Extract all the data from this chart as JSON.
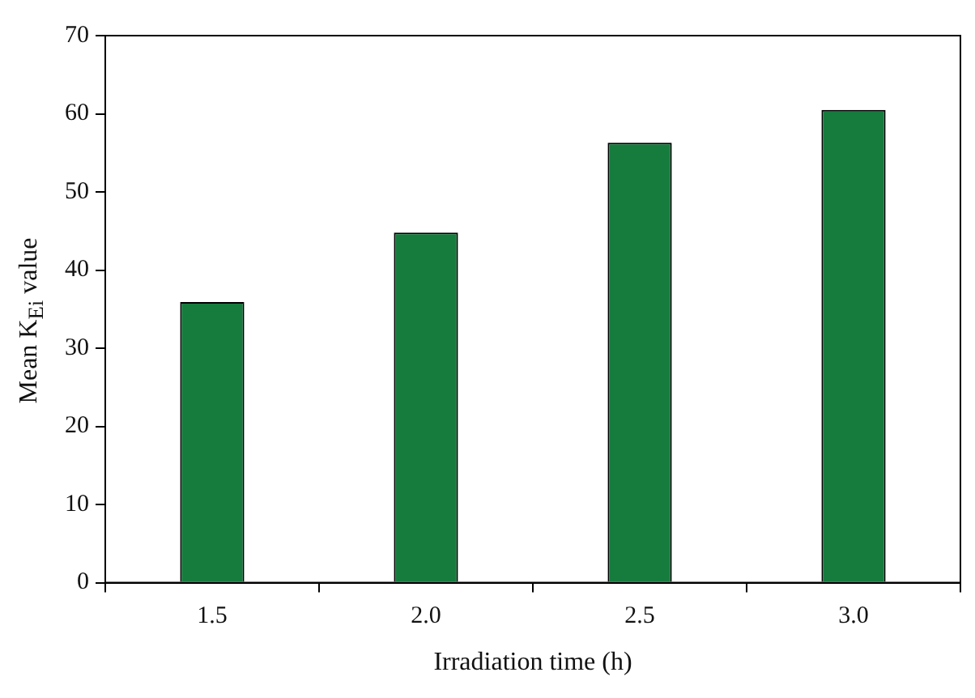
{
  "chart_data": {
    "type": "bar",
    "xlabel": "Irradiation time (h)",
    "ylabel": "Mean K$_{Ei}$ value",
    "categories": [
      "1.5",
      "2.0",
      "2.5",
      "3.0"
    ],
    "values": [
      35.9,
      44.8,
      56.3,
      60.5
    ],
    "color": "#167c3e",
    "ylim": [
      0,
      70
    ],
    "yticks": [
      0,
      10,
      20,
      30,
      40,
      50,
      60,
      70
    ],
    "grid": false,
    "legend": false
  }
}
